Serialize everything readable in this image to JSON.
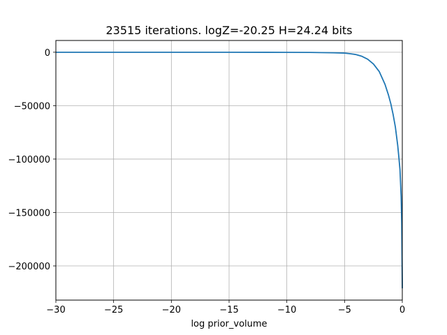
{
  "chart_data": {
    "type": "line",
    "title": "23515 iterations. logZ=-20.25 H=24.24 bits",
    "xlabel": "log prior_volume",
    "ylabel": "",
    "xlim": [
      -30,
      0
    ],
    "ylim": [
      -232000,
      11000
    ],
    "x_ticks": [
      -30,
      -25,
      -20,
      -15,
      -10,
      -5,
      0
    ],
    "x_tick_labels": [
      "−30",
      "−25",
      "−20",
      "−15",
      "−10",
      "−5",
      "0"
    ],
    "y_ticks": [
      0,
      -50000,
      -100000,
      -150000,
      -200000
    ],
    "y_tick_labels": [
      "0",
      "−50000",
      "−100000",
      "−150000",
      "−200000"
    ],
    "grid": true,
    "series": [
      {
        "color": "#1f77b4",
        "x": [
          -30,
          -25,
          -20,
          -15,
          -10,
          -8,
          -6,
          -5,
          -4.5,
          -4,
          -3.5,
          -3,
          -2.5,
          -2,
          -1.5,
          -1.2,
          -1,
          -0.8,
          -0.6,
          -0.4,
          -0.3,
          -0.2,
          -0.1,
          -0.05,
          0
        ],
        "y": [
          0,
          0,
          0,
          0,
          -100,
          -200,
          -500,
          -800,
          -1400,
          -2200,
          -3800,
          -6500,
          -11000,
          -18000,
          -30000,
          -40000,
          -48000,
          -58000,
          -70000,
          -87000,
          -98000,
          -110000,
          -135000,
          -160000,
          -221000
        ]
      }
    ]
  }
}
